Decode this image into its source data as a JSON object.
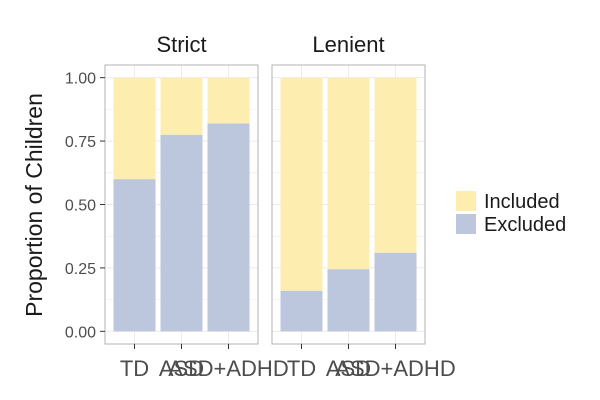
{
  "chart_data": {
    "type": "bar",
    "stacked": true,
    "categories": [
      "TD",
      "ASD",
      "ASD+ADHD"
    ],
    "panels": [
      {
        "title": "Strict",
        "series": [
          {
            "name": "Excluded",
            "values": [
              0.6,
              0.775,
              0.82
            ]
          },
          {
            "name": "Included",
            "values": [
              0.4,
              0.225,
              0.18
            ]
          }
        ]
      },
      {
        "title": "Lenient",
        "series": [
          {
            "name": "Excluded",
            "values": [
              0.16,
              0.245,
              0.31
            ]
          },
          {
            "name": "Included",
            "values": [
              0.84,
              0.755,
              0.69
            ]
          }
        ]
      }
    ],
    "xlabel": "",
    "ylabel": "Proportion of Children",
    "ylim": [
      0,
      1
    ],
    "yticks": [
      0,
      0.25,
      0.5,
      0.75,
      1
    ],
    "ytick_labels": [
      "0.00",
      "0.25",
      "0.50",
      "0.75",
      "1.00"
    ],
    "legend": {
      "position": "right",
      "entries": [
        {
          "name": "Included",
          "color": "#fdeeb0"
        },
        {
          "name": "Excluded",
          "color": "#bcc6dc"
        }
      ]
    },
    "colors": {
      "Included": "#fdeeb0",
      "Excluded": "#bcc6dc",
      "panel_border": "#b3b3b3",
      "grid": "#ebebeb"
    },
    "grid": true
  }
}
